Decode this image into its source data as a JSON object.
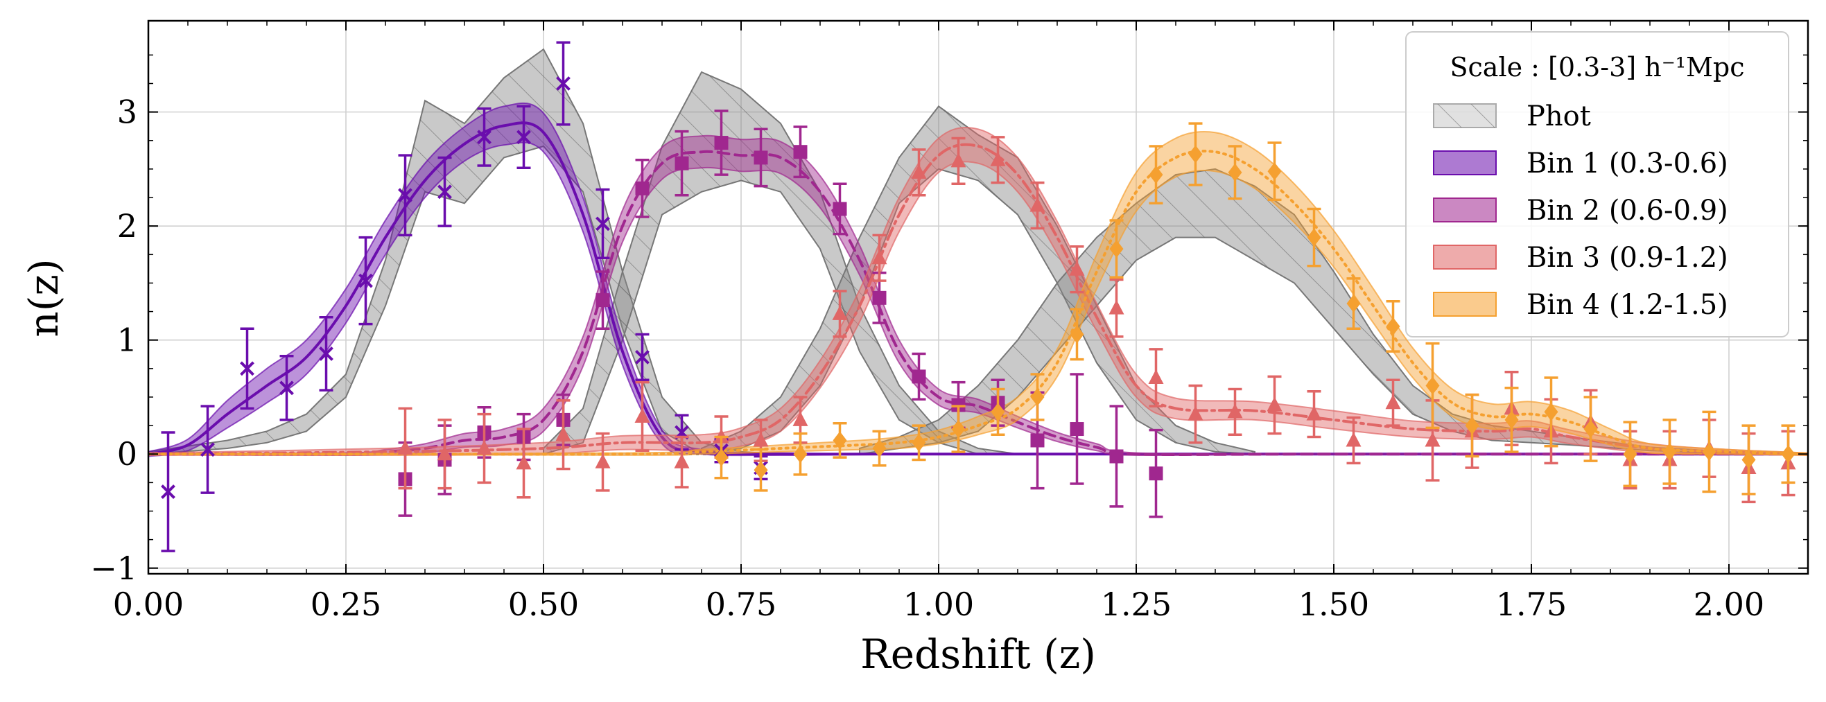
{
  "chart_data": {
    "type": "line",
    "title": "",
    "xlabel": "Redshift (z)",
    "ylabel": "n(z)",
    "xlim": [
      0.0,
      2.1
    ],
    "ylim": [
      -1.05,
      3.8
    ],
    "xticks": [
      0.0,
      0.25,
      0.5,
      0.75,
      1.0,
      1.25,
      1.5,
      1.75,
      2.0
    ],
    "xtick_labels": [
      "0.00",
      "0.25",
      "0.50",
      "0.75",
      "1.00",
      "1.25",
      "1.50",
      "1.75",
      "2.00"
    ],
    "yticks": [
      -1,
      0,
      1,
      2,
      3
    ],
    "ytick_labels": [
      "−1",
      "0",
      "1",
      "2",
      "3"
    ],
    "grid": true,
    "legend": {
      "position": "top-right",
      "title": "Scale : [0.3-3] h⁻¹Mpc",
      "entries": [
        "Phot",
        "Bin 1 (0.3-0.6)",
        "Bin 2 (0.6-0.9)",
        "Bin 3 (0.9-1.2)",
        "Bin 4 (1.2-1.5)"
      ]
    },
    "phot_bands": [
      {
        "name": "Phot 1",
        "color": "#888888",
        "x": [
          0.0,
          0.1,
          0.15,
          0.2,
          0.25,
          0.3,
          0.35,
          0.4,
          0.45,
          0.5,
          0.55,
          0.6,
          0.65,
          0.7,
          0.75,
          0.8
        ],
        "lower": [
          0.0,
          0.05,
          0.1,
          0.2,
          0.5,
          1.3,
          2.3,
          2.2,
          2.6,
          2.7,
          2.3,
          1.1,
          0.2,
          0.0,
          0.0,
          0.0
        ],
        "upper": [
          0.02,
          0.12,
          0.2,
          0.35,
          0.7,
          1.7,
          3.1,
          2.9,
          3.3,
          3.55,
          2.9,
          1.6,
          0.5,
          0.1,
          0.02,
          0.0
        ]
      },
      {
        "name": "Phot 2",
        "color": "#888888",
        "x": [
          0.5,
          0.55,
          0.6,
          0.65,
          0.7,
          0.75,
          0.8,
          0.85,
          0.9,
          0.95,
          1.0,
          1.05,
          1.1
        ],
        "lower": [
          0.0,
          0.1,
          1.0,
          2.1,
          2.3,
          2.4,
          2.3,
          1.8,
          0.9,
          0.3,
          0.1,
          0.0,
          0.0
        ],
        "upper": [
          0.05,
          0.4,
          1.6,
          2.7,
          3.35,
          3.2,
          2.9,
          2.3,
          1.3,
          0.6,
          0.2,
          0.05,
          0.0
        ]
      },
      {
        "name": "Phot 3",
        "color": "#888888",
        "x": [
          0.7,
          0.75,
          0.8,
          0.85,
          0.9,
          0.95,
          1.0,
          1.05,
          1.1,
          1.15,
          1.2,
          1.25,
          1.3,
          1.35,
          1.4
        ],
        "lower": [
          0.0,
          0.05,
          0.2,
          0.6,
          1.3,
          2.2,
          2.5,
          2.4,
          2.1,
          1.5,
          0.8,
          0.3,
          0.1,
          0.02,
          0.0
        ],
        "upper": [
          0.05,
          0.2,
          0.5,
          1.1,
          1.9,
          2.6,
          3.05,
          2.8,
          2.6,
          2.0,
          1.3,
          0.6,
          0.25,
          0.1,
          0.02
        ]
      },
      {
        "name": "Phot 4",
        "color": "#888888",
        "x": [
          0.9,
          0.95,
          1.0,
          1.05,
          1.1,
          1.15,
          1.2,
          1.25,
          1.3,
          1.35,
          1.4,
          1.45,
          1.5,
          1.55,
          1.6,
          1.65,
          1.7,
          1.75,
          1.8,
          1.9,
          2.0,
          2.1
        ],
        "lower": [
          0.0,
          0.05,
          0.1,
          0.2,
          0.5,
          0.9,
          1.3,
          1.7,
          1.9,
          1.9,
          1.7,
          1.5,
          1.1,
          0.7,
          0.35,
          0.2,
          0.12,
          0.1,
          0.08,
          0.03,
          0.01,
          0.0
        ],
        "upper": [
          0.05,
          0.15,
          0.3,
          0.6,
          1.0,
          1.5,
          1.9,
          2.2,
          2.45,
          2.5,
          2.35,
          2.1,
          1.6,
          1.05,
          0.6,
          0.35,
          0.25,
          0.2,
          0.15,
          0.06,
          0.02,
          0.0
        ]
      }
    ],
    "series": [
      {
        "name": "Bin 1 (0.3-0.6)",
        "color": "#6a0dad",
        "marker": "x",
        "dash": "solid",
        "x": [
          0.0,
          0.05,
          0.1,
          0.15,
          0.2,
          0.25,
          0.3,
          0.35,
          0.4,
          0.45,
          0.5,
          0.55,
          0.6,
          0.65,
          0.7,
          0.8,
          1.0,
          1.5,
          2.1
        ],
        "center": [
          0.0,
          0.08,
          0.35,
          0.6,
          0.85,
          1.3,
          1.9,
          2.4,
          2.72,
          2.88,
          2.82,
          2.1,
          0.9,
          0.15,
          0.02,
          0.0,
          0.0,
          0.0,
          0.0
        ],
        "band": [
          0.02,
          0.05,
          0.12,
          0.15,
          0.15,
          0.15,
          0.15,
          0.15,
          0.15,
          0.17,
          0.17,
          0.15,
          0.12,
          0.06,
          0.02,
          0.01,
          0.0,
          0.0,
          0.0
        ],
        "points": [
          {
            "x": 0.025,
            "y": -0.33,
            "err": 0.52
          },
          {
            "x": 0.075,
            "y": 0.04,
            "err": 0.38
          },
          {
            "x": 0.125,
            "y": 0.75,
            "err": 0.35
          },
          {
            "x": 0.175,
            "y": 0.58,
            "err": 0.28
          },
          {
            "x": 0.225,
            "y": 0.88,
            "err": 0.32
          },
          {
            "x": 0.275,
            "y": 1.52,
            "err": 0.38
          },
          {
            "x": 0.325,
            "y": 2.27,
            "err": 0.35
          },
          {
            "x": 0.375,
            "y": 2.3,
            "err": 0.3
          },
          {
            "x": 0.425,
            "y": 2.78,
            "err": 0.25
          },
          {
            "x": 0.475,
            "y": 2.78,
            "err": 0.27
          },
          {
            "x": 0.525,
            "y": 3.25,
            "err": 0.36
          },
          {
            "x": 0.575,
            "y": 2.02,
            "err": 0.3
          },
          {
            "x": 0.625,
            "y": 0.85,
            "err": 0.2
          },
          {
            "x": 0.675,
            "y": 0.19,
            "err": 0.15
          },
          {
            "x": 0.725,
            "y": 0.03,
            "err": 0.1
          },
          {
            "x": 0.775,
            "y": -0.12,
            "err": 0.1
          }
        ]
      },
      {
        "name": "Bin 2 (0.6-0.9)",
        "color": "#a0278f",
        "marker": "square",
        "dash": "dashed",
        "x": [
          0.0,
          0.25,
          0.3,
          0.35,
          0.4,
          0.45,
          0.5,
          0.55,
          0.6,
          0.65,
          0.7,
          0.75,
          0.8,
          0.85,
          0.9,
          0.95,
          1.0,
          1.05,
          1.1,
          1.15,
          1.2,
          1.25,
          1.5,
          2.1
        ],
        "center": [
          0.0,
          0.0,
          0.02,
          0.05,
          0.12,
          0.15,
          0.3,
          0.9,
          2.0,
          2.55,
          2.65,
          2.62,
          2.6,
          2.3,
          1.7,
          0.9,
          0.5,
          0.42,
          0.28,
          0.15,
          0.06,
          0.0,
          0.0,
          0.0
        ],
        "band": [
          0.0,
          0.01,
          0.02,
          0.04,
          0.06,
          0.07,
          0.1,
          0.13,
          0.14,
          0.14,
          0.14,
          0.14,
          0.14,
          0.14,
          0.13,
          0.1,
          0.07,
          0.06,
          0.05,
          0.04,
          0.03,
          0.01,
          0.0,
          0.0
        ],
        "points": [
          {
            "x": 0.325,
            "y": -0.22,
            "err": 0.32
          },
          {
            "x": 0.375,
            "y": -0.05,
            "err": 0.3
          },
          {
            "x": 0.425,
            "y": 0.19,
            "err": 0.22
          },
          {
            "x": 0.475,
            "y": 0.15,
            "err": 0.2
          },
          {
            "x": 0.525,
            "y": 0.3,
            "err": 0.22
          },
          {
            "x": 0.575,
            "y": 1.35,
            "err": 0.25
          },
          {
            "x": 0.625,
            "y": 2.33,
            "err": 0.25
          },
          {
            "x": 0.675,
            "y": 2.55,
            "err": 0.28
          },
          {
            "x": 0.725,
            "y": 2.73,
            "err": 0.28
          },
          {
            "x": 0.775,
            "y": 2.6,
            "err": 0.25
          },
          {
            "x": 0.825,
            "y": 2.65,
            "err": 0.22
          },
          {
            "x": 0.875,
            "y": 2.15,
            "err": 0.22
          },
          {
            "x": 0.925,
            "y": 1.37,
            "err": 0.22
          },
          {
            "x": 0.975,
            "y": 0.68,
            "err": 0.2
          },
          {
            "x": 1.025,
            "y": 0.43,
            "err": 0.2
          },
          {
            "x": 1.075,
            "y": 0.45,
            "err": 0.2
          },
          {
            "x": 1.125,
            "y": 0.12,
            "err": 0.42
          },
          {
            "x": 1.175,
            "y": 0.22,
            "err": 0.48
          },
          {
            "x": 1.225,
            "y": -0.02,
            "err": 0.44
          },
          {
            "x": 1.275,
            "y": -0.17,
            "err": 0.38
          }
        ]
      },
      {
        "name": "Bin 3 (0.9-1.2)",
        "color": "#e06666",
        "marker": "triangle",
        "dash": "dashdot",
        "x": [
          0.0,
          0.3,
          0.5,
          0.6,
          0.7,
          0.75,
          0.8,
          0.85,
          0.9,
          0.95,
          1.0,
          1.05,
          1.1,
          1.15,
          1.2,
          1.25,
          1.3,
          1.4,
          1.5,
          1.6,
          1.7,
          1.75,
          1.8,
          1.9,
          2.0,
          2.1
        ],
        "center": [
          0.0,
          0.02,
          0.05,
          0.1,
          0.1,
          0.15,
          0.3,
          0.7,
          1.3,
          2.1,
          2.62,
          2.7,
          2.45,
          1.9,
          1.2,
          0.6,
          0.4,
          0.38,
          0.3,
          0.22,
          0.2,
          0.22,
          0.15,
          0.05,
          0.02,
          0.0
        ],
        "band": [
          0.01,
          0.03,
          0.05,
          0.06,
          0.07,
          0.08,
          0.1,
          0.12,
          0.14,
          0.15,
          0.15,
          0.15,
          0.15,
          0.14,
          0.12,
          0.1,
          0.09,
          0.08,
          0.08,
          0.07,
          0.07,
          0.07,
          0.06,
          0.04,
          0.02,
          0.01
        ],
        "points": [
          {
            "x": 0.325,
            "y": 0.05,
            "err": 0.35
          },
          {
            "x": 0.375,
            "y": 0.0,
            "err": 0.3
          },
          {
            "x": 0.425,
            "y": 0.05,
            "err": 0.3
          },
          {
            "x": 0.475,
            "y": -0.08,
            "err": 0.3
          },
          {
            "x": 0.525,
            "y": 0.17,
            "err": 0.3
          },
          {
            "x": 0.575,
            "y": -0.07,
            "err": 0.25
          },
          {
            "x": 0.625,
            "y": 0.33,
            "err": 0.3
          },
          {
            "x": 0.675,
            "y": -0.07,
            "err": 0.22
          },
          {
            "x": 0.725,
            "y": 0.15,
            "err": 0.18
          },
          {
            "x": 0.775,
            "y": 0.12,
            "err": 0.18
          },
          {
            "x": 0.825,
            "y": 0.3,
            "err": 0.2
          },
          {
            "x": 0.875,
            "y": 1.23,
            "err": 0.2
          },
          {
            "x": 0.925,
            "y": 1.72,
            "err": 0.2
          },
          {
            "x": 0.975,
            "y": 2.47,
            "err": 0.2
          },
          {
            "x": 1.025,
            "y": 2.57,
            "err": 0.2
          },
          {
            "x": 1.075,
            "y": 2.58,
            "err": 0.2
          },
          {
            "x": 1.125,
            "y": 2.18,
            "err": 0.2
          },
          {
            "x": 1.175,
            "y": 1.62,
            "err": 0.2
          },
          {
            "x": 1.225,
            "y": 1.28,
            "err": 0.25
          },
          {
            "x": 1.275,
            "y": 0.67,
            "err": 0.25
          },
          {
            "x": 1.325,
            "y": 0.35,
            "err": 0.25
          },
          {
            "x": 1.375,
            "y": 0.37,
            "err": 0.2
          },
          {
            "x": 1.425,
            "y": 0.43,
            "err": 0.25
          },
          {
            "x": 1.475,
            "y": 0.35,
            "err": 0.2
          },
          {
            "x": 1.525,
            "y": 0.12,
            "err": 0.2
          },
          {
            "x": 1.575,
            "y": 0.45,
            "err": 0.2
          },
          {
            "x": 1.625,
            "y": 0.12,
            "err": 0.35
          },
          {
            "x": 1.675,
            "y": 0.2,
            "err": 0.32
          },
          {
            "x": 1.725,
            "y": 0.4,
            "err": 0.32
          },
          {
            "x": 1.775,
            "y": 0.2,
            "err": 0.28
          },
          {
            "x": 1.825,
            "y": 0.28,
            "err": 0.28
          },
          {
            "x": 1.875,
            "y": -0.05,
            "err": 0.25
          },
          {
            "x": 1.925,
            "y": -0.05,
            "err": 0.25
          },
          {
            "x": 1.975,
            "y": 0.05,
            "err": 0.25
          },
          {
            "x": 2.025,
            "y": -0.12,
            "err": 0.3
          },
          {
            "x": 2.075,
            "y": -0.08,
            "err": 0.28
          }
        ]
      },
      {
        "name": "Bin 4 (1.2-1.5)",
        "color": "#f5a030",
        "marker": "diamond",
        "dash": "dotted",
        "x": [
          0.0,
          0.6,
          0.7,
          0.8,
          0.9,
          0.95,
          1.0,
          1.05,
          1.1,
          1.15,
          1.2,
          1.25,
          1.3,
          1.35,
          1.4,
          1.45,
          1.5,
          1.55,
          1.6,
          1.65,
          1.7,
          1.75,
          1.8,
          1.85,
          1.9,
          2.0,
          2.1
        ],
        "center": [
          0.0,
          0.0,
          0.02,
          0.05,
          0.08,
          0.1,
          0.15,
          0.25,
          0.4,
          0.8,
          1.6,
          2.3,
          2.6,
          2.65,
          2.5,
          2.2,
          1.8,
          1.3,
          0.8,
          0.45,
          0.33,
          0.35,
          0.28,
          0.15,
          0.05,
          0.02,
          0.0
        ],
        "band": [
          0.0,
          0.01,
          0.02,
          0.03,
          0.04,
          0.05,
          0.06,
          0.08,
          0.1,
          0.12,
          0.15,
          0.17,
          0.17,
          0.17,
          0.17,
          0.17,
          0.16,
          0.15,
          0.13,
          0.12,
          0.11,
          0.11,
          0.1,
          0.07,
          0.04,
          0.02,
          0.01
        ],
        "points": [
          {
            "x": 0.725,
            "y": -0.03,
            "err": 0.18
          },
          {
            "x": 0.775,
            "y": -0.14,
            "err": 0.18
          },
          {
            "x": 0.825,
            "y": 0.0,
            "err": 0.18
          },
          {
            "x": 0.875,
            "y": 0.12,
            "err": 0.15
          },
          {
            "x": 0.925,
            "y": 0.05,
            "err": 0.15
          },
          {
            "x": 0.975,
            "y": 0.1,
            "err": 0.15
          },
          {
            "x": 1.025,
            "y": 0.22,
            "err": 0.2
          },
          {
            "x": 1.075,
            "y": 0.37,
            "err": 0.2
          },
          {
            "x": 1.125,
            "y": 0.5,
            "err": 0.2
          },
          {
            "x": 1.175,
            "y": 1.05,
            "err": 0.22
          },
          {
            "x": 1.225,
            "y": 1.8,
            "err": 0.25
          },
          {
            "x": 1.275,
            "y": 2.45,
            "err": 0.25
          },
          {
            "x": 1.325,
            "y": 2.63,
            "err": 0.27
          },
          {
            "x": 1.375,
            "y": 2.47,
            "err": 0.23
          },
          {
            "x": 1.425,
            "y": 2.48,
            "err": 0.25
          },
          {
            "x": 1.475,
            "y": 1.9,
            "err": 0.25
          },
          {
            "x": 1.525,
            "y": 1.32,
            "err": 0.22
          },
          {
            "x": 1.575,
            "y": 1.12,
            "err": 0.22
          },
          {
            "x": 1.625,
            "y": 0.6,
            "err": 0.37
          },
          {
            "x": 1.675,
            "y": 0.25,
            "err": 0.27
          },
          {
            "x": 1.725,
            "y": 0.3,
            "err": 0.28
          },
          {
            "x": 1.775,
            "y": 0.37,
            "err": 0.3
          },
          {
            "x": 1.825,
            "y": 0.22,
            "err": 0.28
          },
          {
            "x": 1.875,
            "y": 0.0,
            "err": 0.28
          },
          {
            "x": 1.925,
            "y": 0.02,
            "err": 0.28
          },
          {
            "x": 1.975,
            "y": 0.02,
            "err": 0.35
          },
          {
            "x": 2.025,
            "y": -0.05,
            "err": 0.3
          },
          {
            "x": 2.075,
            "y": 0.0,
            "err": 0.25
          }
        ]
      }
    ]
  }
}
